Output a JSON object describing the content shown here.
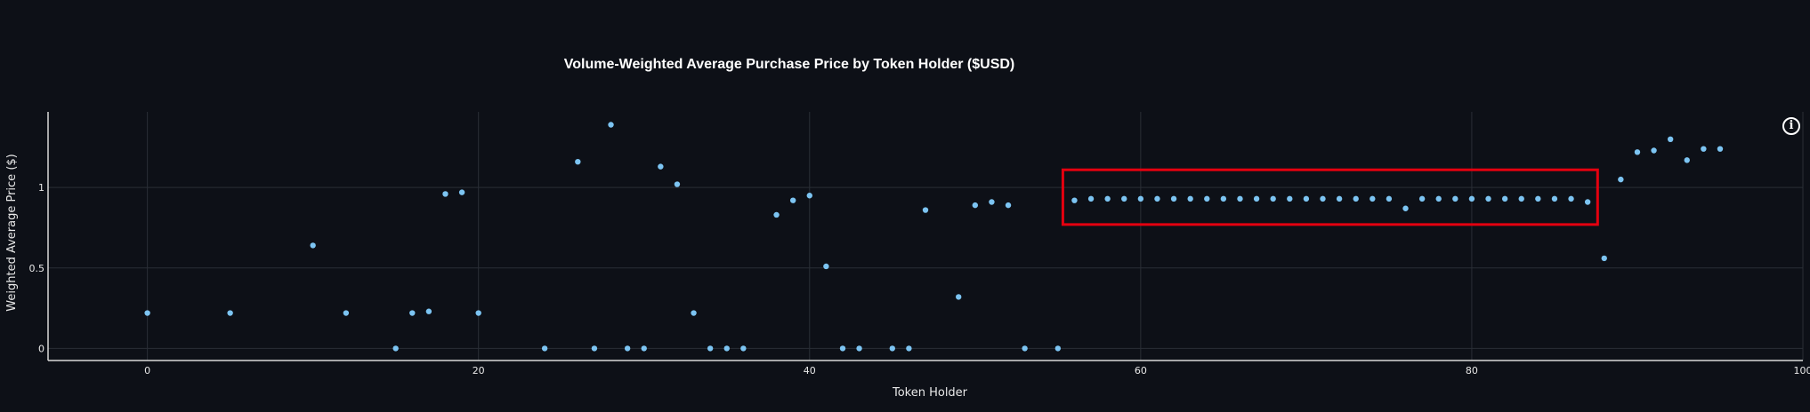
{
  "chart_data": {
    "type": "scatter",
    "title": "Volume-Weighted Average Purchase Price by Token Holder ($USD)",
    "xlabel": "Token Holder",
    "ylabel": "Weighted Average Price ($)",
    "xlim": [
      -6,
      100
    ],
    "ylim": [
      -0.075,
      1.47
    ],
    "x_ticks": [
      0,
      20,
      40,
      60,
      80,
      100
    ],
    "x_tick_labels": [
      "0",
      "20",
      "40",
      "60",
      "80",
      "100"
    ],
    "y_ticks": [
      0,
      0.5,
      1
    ],
    "y_tick_labels": [
      "0",
      "0.5",
      "1"
    ],
    "grid": true,
    "marker_color": "#7cc4f2",
    "highlight_color": "#e4000f",
    "highlight_range": {
      "x": [
        55.3,
        87.6
      ],
      "y": [
        0.77,
        1.11
      ]
    },
    "points": [
      [
        0,
        0.22
      ],
      [
        5,
        0.22
      ],
      [
        10,
        0.64
      ],
      [
        12,
        0.22
      ],
      [
        15,
        0.0
      ],
      [
        16,
        0.22
      ],
      [
        17,
        0.23
      ],
      [
        18,
        0.96
      ],
      [
        19,
        0.97
      ],
      [
        20,
        0.22
      ],
      [
        24,
        0.0
      ],
      [
        26,
        1.16
      ],
      [
        27,
        0.0
      ],
      [
        28,
        1.39
      ],
      [
        29,
        0.0
      ],
      [
        30,
        0.0
      ],
      [
        31,
        1.13
      ],
      [
        32,
        1.02
      ],
      [
        33,
        0.22
      ],
      [
        34,
        0.0
      ],
      [
        35,
        0.0
      ],
      [
        36,
        0.0
      ],
      [
        38,
        0.83
      ],
      [
        39,
        0.92
      ],
      [
        40,
        0.95
      ],
      [
        41,
        0.51
      ],
      [
        42,
        0.0
      ],
      [
        43,
        0.0
      ],
      [
        45,
        0.0
      ],
      [
        46,
        0.0
      ],
      [
        47,
        0.86
      ],
      [
        49,
        0.32
      ],
      [
        50,
        0.89
      ],
      [
        51,
        0.91
      ],
      [
        52,
        0.89
      ],
      [
        53,
        0.0
      ],
      [
        55,
        0.0
      ],
      [
        56,
        0.92
      ],
      [
        57,
        0.93
      ],
      [
        58,
        0.93
      ],
      [
        59,
        0.93
      ],
      [
        60,
        0.93
      ],
      [
        61,
        0.93
      ],
      [
        62,
        0.93
      ],
      [
        63,
        0.93
      ],
      [
        64,
        0.93
      ],
      [
        65,
        0.93
      ],
      [
        66,
        0.93
      ],
      [
        67,
        0.93
      ],
      [
        68,
        0.93
      ],
      [
        69,
        0.93
      ],
      [
        70,
        0.93
      ],
      [
        71,
        0.93
      ],
      [
        72,
        0.93
      ],
      [
        73,
        0.93
      ],
      [
        74,
        0.93
      ],
      [
        75,
        0.93
      ],
      [
        76,
        0.87
      ],
      [
        77,
        0.93
      ],
      [
        78,
        0.93
      ],
      [
        79,
        0.93
      ],
      [
        80,
        0.93
      ],
      [
        81,
        0.93
      ],
      [
        82,
        0.93
      ],
      [
        83,
        0.93
      ],
      [
        84,
        0.93
      ],
      [
        85,
        0.93
      ],
      [
        86,
        0.93
      ],
      [
        87,
        0.91
      ],
      [
        88,
        0.56
      ],
      [
        89,
        1.05
      ],
      [
        90,
        1.22
      ],
      [
        91,
        1.23
      ],
      [
        92,
        1.3
      ],
      [
        93,
        1.17
      ],
      [
        94,
        1.24
      ],
      [
        95,
        1.24
      ]
    ]
  },
  "info_button": {
    "label": "i"
  }
}
